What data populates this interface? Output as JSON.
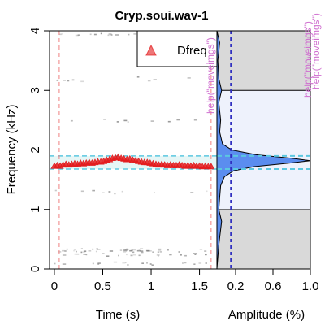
{
  "chart_data": [
    {
      "type": "scatter",
      "title": "Cryp.soui.wav-1",
      "xlabel": "Time (s)",
      "ylabel": "Frequency (kHz)",
      "xlim": [
        -0.05,
        1.68
      ],
      "ylim": [
        0,
        4
      ],
      "x_ticks": [
        0,
        0.5,
        1,
        1.5
      ],
      "x_tick_labels": [
        "0",
        "0.5",
        "1",
        "1.5"
      ],
      "y_ticks": [
        0,
        1,
        2,
        3,
        4
      ],
      "y_tick_labels": [
        "0",
        "1",
        "2",
        "3",
        "4"
      ],
      "legend": {
        "position": "top-right",
        "entries": [
          "Dfreq"
        ]
      },
      "background": "grayscale spectrogram",
      "dfreq_points": {
        "name": "Dfreq",
        "marker": "triangle",
        "color": "#e31a1c",
        "x": [
          0.0,
          0.03,
          0.06,
          0.09,
          0.12,
          0.15,
          0.18,
          0.21,
          0.24,
          0.27,
          0.3,
          0.33,
          0.36,
          0.39,
          0.42,
          0.45,
          0.48,
          0.51,
          0.54,
          0.57,
          0.6,
          0.63,
          0.66,
          0.69,
          0.72,
          0.75,
          0.78,
          0.81,
          0.84,
          0.87,
          0.9,
          0.93,
          0.96,
          0.99,
          1.02,
          1.05,
          1.08,
          1.11,
          1.14,
          1.17,
          1.2,
          1.23,
          1.26,
          1.29,
          1.32,
          1.35,
          1.38,
          1.41,
          1.44,
          1.47,
          1.5,
          1.53,
          1.56,
          1.59,
          1.62
        ],
        "y": [
          1.73,
          1.74,
          1.73,
          1.75,
          1.76,
          1.75,
          1.76,
          1.77,
          1.76,
          1.78,
          1.77,
          1.78,
          1.79,
          1.78,
          1.79,
          1.8,
          1.8,
          1.81,
          1.83,
          1.84,
          1.86,
          1.87,
          1.88,
          1.86,
          1.85,
          1.84,
          1.85,
          1.83,
          1.82,
          1.81,
          1.8,
          1.79,
          1.79,
          1.78,
          1.77,
          1.76,
          1.75,
          1.76,
          1.75,
          1.74,
          1.75,
          1.74,
          1.74,
          1.75,
          1.74,
          1.73,
          1.74,
          1.73,
          1.74,
          1.73,
          1.73,
          1.72,
          1.73,
          1.72,
          1.72
        ]
      },
      "vertical_reference_lines_x": [
        0.05,
        1.62
      ],
      "horizontal_band_y": [
        1.68,
        1.9
      ]
    },
    {
      "type": "area",
      "xlabel": "Amplitude (%)",
      "xlim": [
        0,
        1
      ],
      "ylim": [
        0,
        4
      ],
      "x_ticks": [
        0.2,
        0.6,
        1.0
      ],
      "x_tick_labels": [
        "0.2",
        "0.6",
        "1.0"
      ],
      "spectrum": {
        "freq": [
          0.0,
          0.4,
          0.8,
          1.0,
          1.2,
          1.4,
          1.55,
          1.65,
          1.72,
          1.78,
          1.82,
          1.86,
          1.92,
          2.0,
          2.1,
          2.3,
          2.5,
          2.8,
          3.0,
          3.2,
          3.5,
          3.8,
          4.0
        ],
        "amp": [
          0.0,
          0.02,
          0.05,
          0.02,
          0.03,
          0.04,
          0.08,
          0.18,
          0.4,
          0.78,
          1.0,
          0.8,
          0.42,
          0.16,
          0.06,
          0.03,
          0.04,
          0.02,
          0.05,
          0.02,
          0.01,
          0.03,
          0.0
        ]
      },
      "threshold_amplitude": 0.15,
      "band_shading_freq": [
        1.0,
        3.0
      ],
      "margin_notes": [
        "help(\"moveimgs\")",
        "help(\"moveimgs\")",
        "help(\"moveimgs\")"
      ]
    }
  ]
}
